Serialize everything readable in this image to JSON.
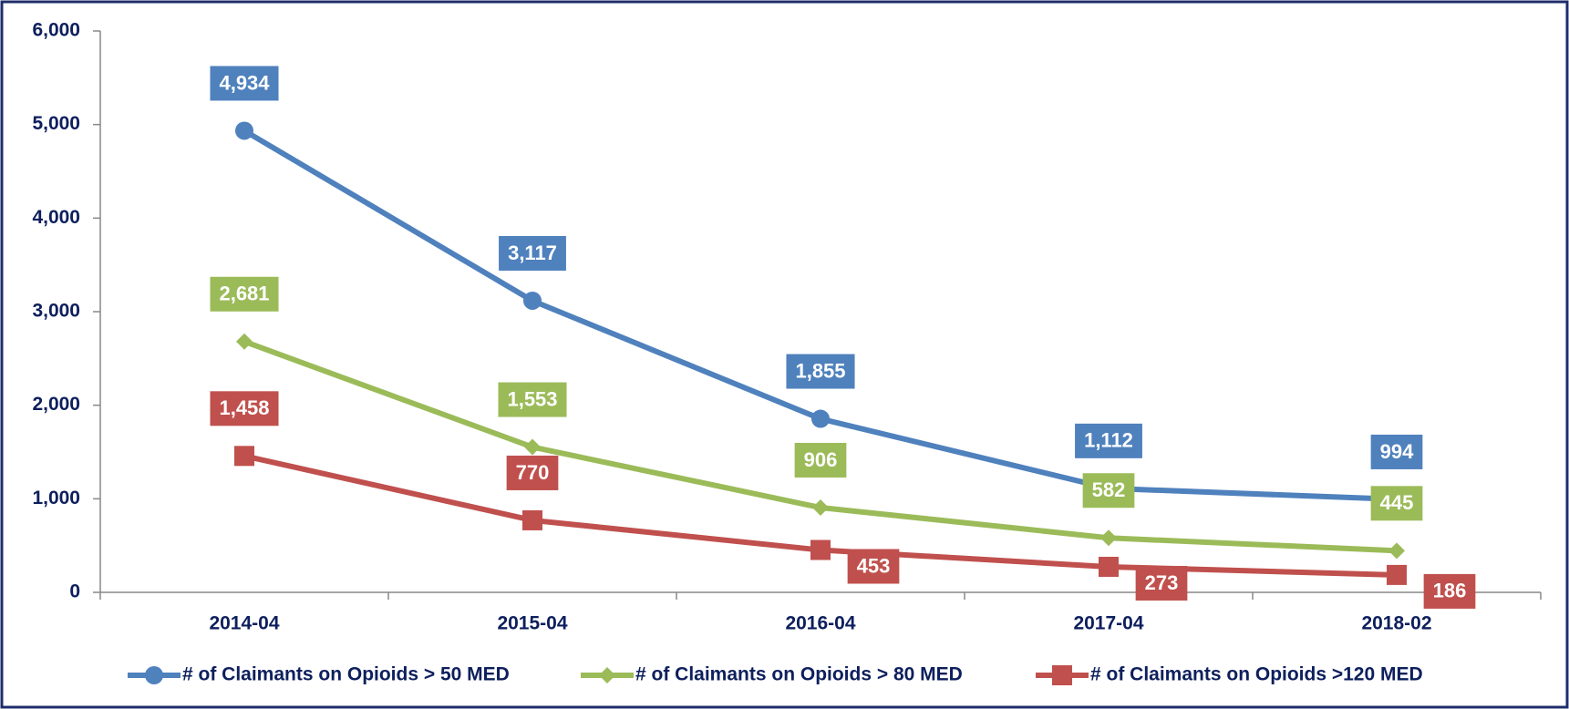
{
  "chart_data": {
    "type": "line",
    "categories": [
      "2014-04",
      "2015-04",
      "2016-04",
      "2017-04",
      "2018-02"
    ],
    "series": [
      {
        "name": "# of Claimants on Opioids > 50 MED",
        "color": "#4f81bd",
        "marker": "circle",
        "values": [
          4934,
          3117,
          1855,
          1112,
          994
        ],
        "value_labels": [
          "4,934",
          "3,117",
          "1,855",
          "1,112",
          "994"
        ]
      },
      {
        "name": "# of Claimants on Opioids > 80 MED",
        "color": "#9bbb59",
        "marker": "diamond",
        "values": [
          2681,
          1553,
          906,
          582,
          445
        ],
        "value_labels": [
          "2,681",
          "1,553",
          "906",
          "582",
          "445"
        ]
      },
      {
        "name": "# of Claimants on Opioids >120 MED",
        "color": "#c0504d",
        "marker": "square",
        "values": [
          1458,
          770,
          453,
          273,
          186
        ],
        "value_labels": [
          "1,458",
          "770",
          "453",
          "273",
          "186"
        ]
      }
    ],
    "ylim": [
      0,
      6000
    ],
    "yticks": [
      0,
      {
        "value": 1000,
        "label": "1,000"
      },
      {
        "value": 2000,
        "label": "2,000"
      },
      {
        "value": 3000,
        "label": "3,000"
      },
      {
        "value": 4000,
        "label": "4,000"
      },
      {
        "value": 5000,
        "label": "5,000"
      },
      {
        "value": 6000,
        "label": "6,000"
      }
    ],
    "grid": false,
    "legend": "bottom"
  }
}
